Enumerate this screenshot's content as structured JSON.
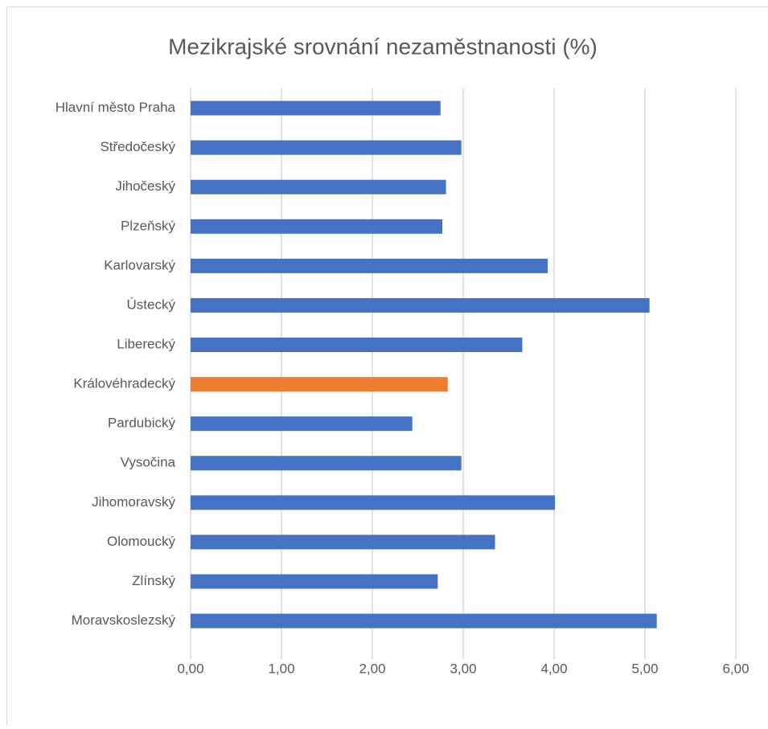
{
  "chart_data": {
    "type": "bar",
    "orientation": "horizontal",
    "title": "Mezikrajské srovnání nezaměstnanosti (%)",
    "categories": [
      "Hlavní město Praha",
      "Středočeský",
      "Jihočeský",
      "Plzeňský",
      "Karlovarský",
      "Ústecký",
      "Liberecký",
      "Královéhradecký",
      "Pardubický",
      "Vysočina",
      "Jihomoravský",
      "Olomoucký",
      "Zlínský",
      "Moravskoslezský"
    ],
    "values": [
      2.75,
      2.98,
      2.81,
      2.77,
      3.93,
      5.05,
      3.65,
      2.83,
      2.44,
      2.98,
      4.01,
      3.35,
      2.72,
      5.13
    ],
    "colors": [
      "#4472c4",
      "#4472c4",
      "#4472c4",
      "#4472c4",
      "#4472c4",
      "#4472c4",
      "#4472c4",
      "#ed7d31",
      "#4472c4",
      "#4472c4",
      "#4472c4",
      "#4472c4",
      "#4472c4",
      "#4472c4"
    ],
    "xlim": [
      0,
      6
    ],
    "xticks": [
      {
        "value": 0,
        "label": "0,00"
      },
      {
        "value": 1,
        "label": "1,00"
      },
      {
        "value": 2,
        "label": "2,00"
      },
      {
        "value": 3,
        "label": "3,00"
      },
      {
        "value": 4,
        "label": "4,00"
      },
      {
        "value": 5,
        "label": "5,00"
      },
      {
        "value": 6,
        "label": "6,00"
      }
    ],
    "grid": true
  }
}
